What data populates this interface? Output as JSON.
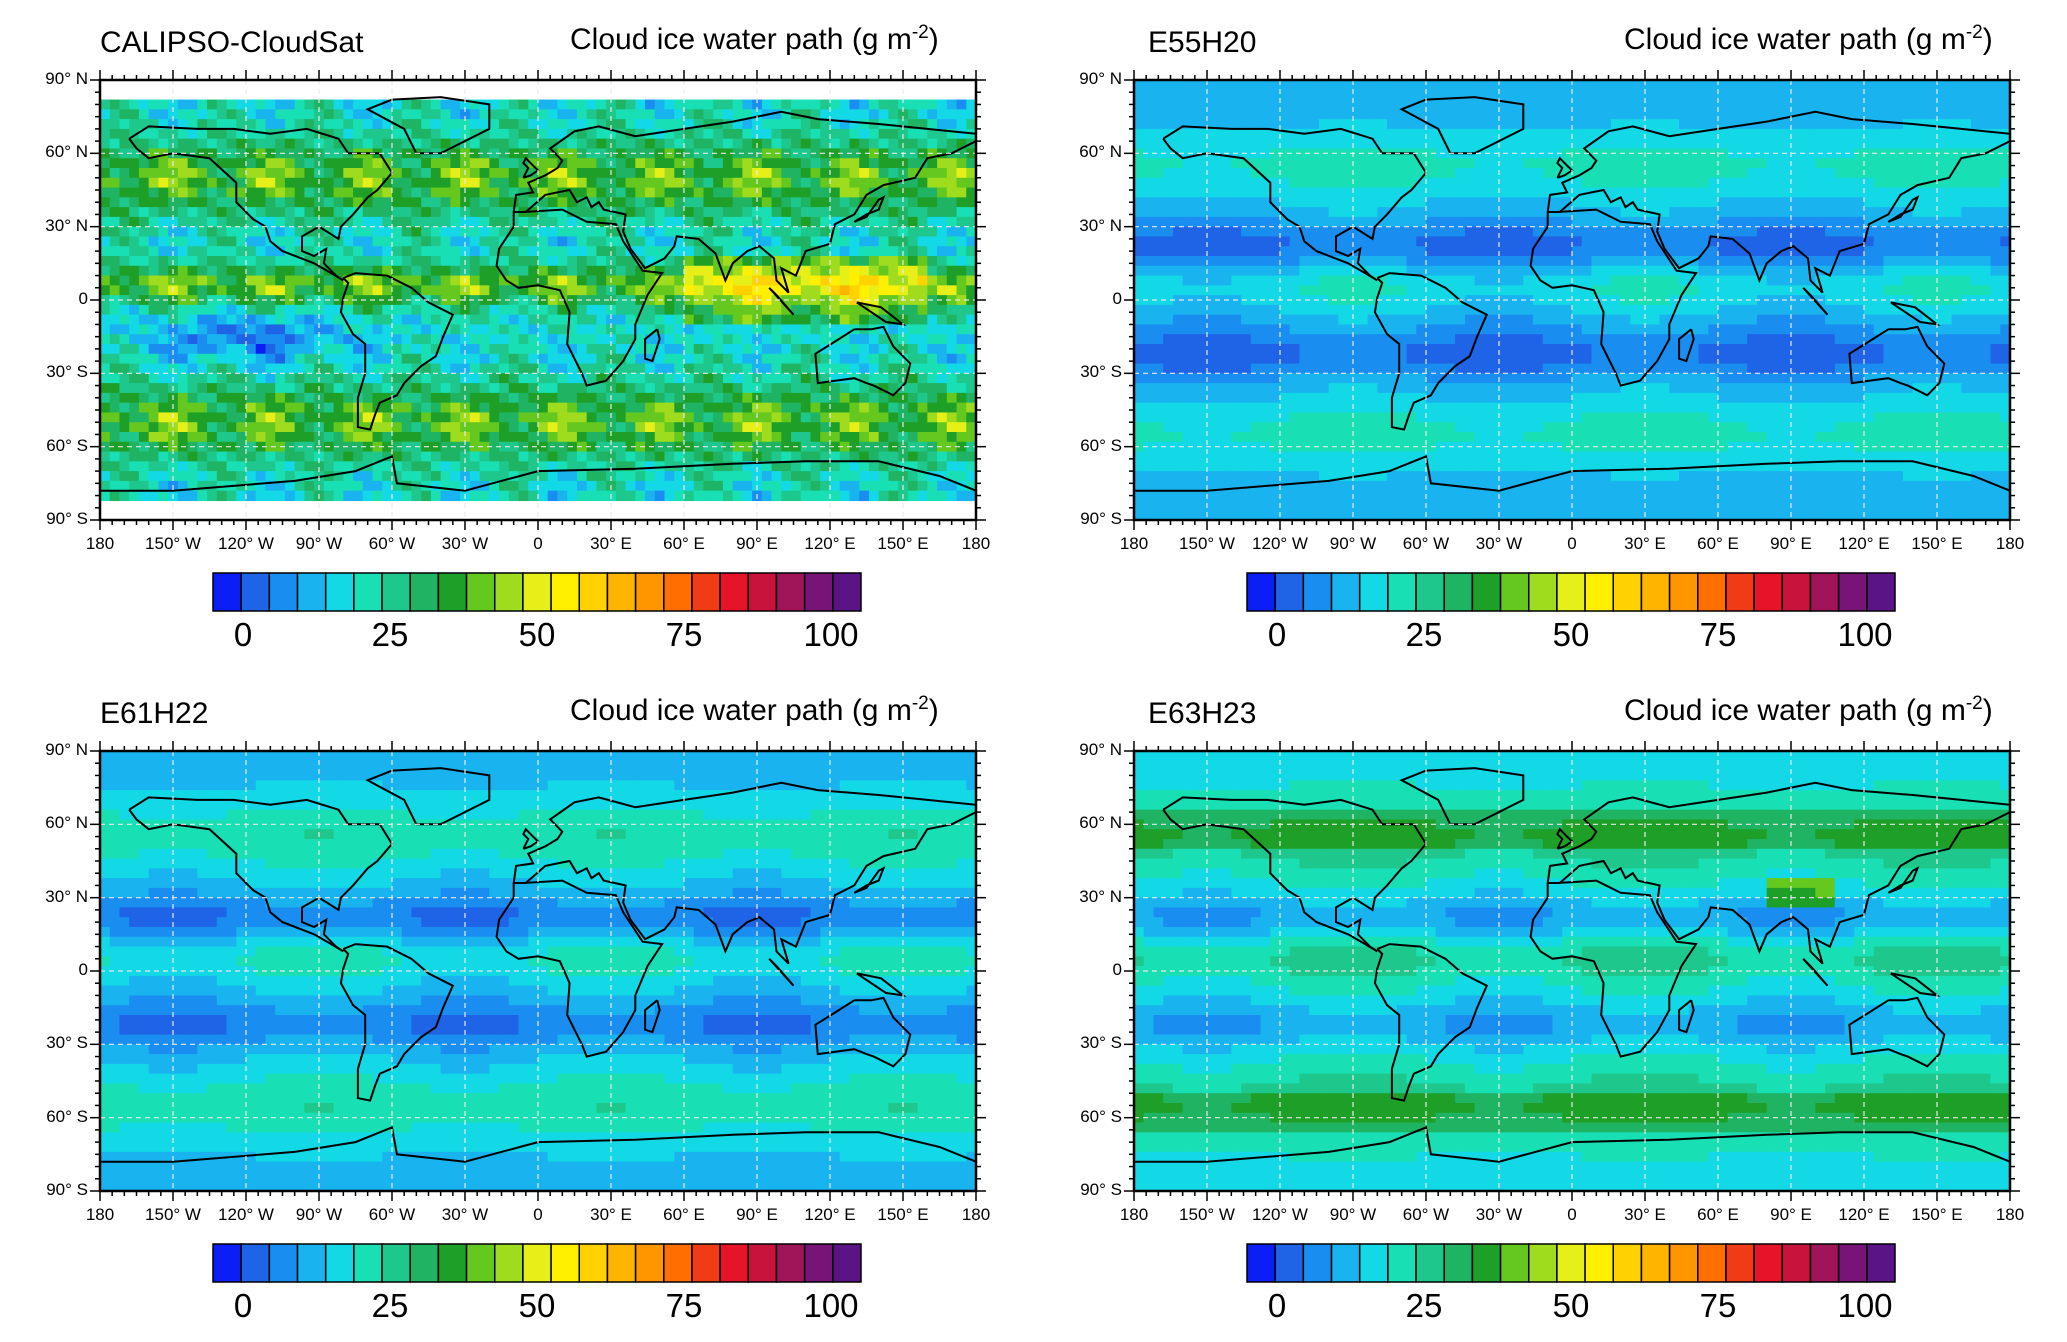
{
  "variable": {
    "label": "Cloud ice water path (g m",
    "unit_exponent": "-2",
    "label_close": ")"
  },
  "x_ticks": [
    "180",
    "150° W",
    "120° W",
    "90° W",
    "60° W",
    "30° W",
    "0",
    "30° E",
    "60° E",
    "90° E",
    "120° E",
    "150° E",
    "180"
  ],
  "y_ticks": [
    "90° N",
    "60° N",
    "30° N",
    "0",
    "30° S",
    "60° S",
    "90° S"
  ],
  "colorbar": {
    "labels": [
      "0",
      "25",
      "50",
      "75",
      "100"
    ],
    "colors": [
      "#0a1ef5",
      "#1f63e6",
      "#1a8ef0",
      "#19b4f0",
      "#13d9e6",
      "#18e0b4",
      "#1ec88c",
      "#1eb464",
      "#1ea028",
      "#64c81e",
      "#a0dc1e",
      "#e6f018",
      "#fff000",
      "#ffd200",
      "#ffb400",
      "#ff9600",
      "#ff6e00",
      "#f03c14",
      "#e61428",
      "#c8143c",
      "#a0145a",
      "#781478",
      "#5a1486"
    ]
  },
  "panels": [
    {
      "title": "CALIPSO-CloudSat",
      "map_id": "calipso-cloudsat"
    },
    {
      "title": "E55H20",
      "map_id": "e55h20"
    },
    {
      "title": "E61H22",
      "map_id": "e61h22"
    },
    {
      "title": "E63H23",
      "map_id": "e63h23"
    }
  ]
}
